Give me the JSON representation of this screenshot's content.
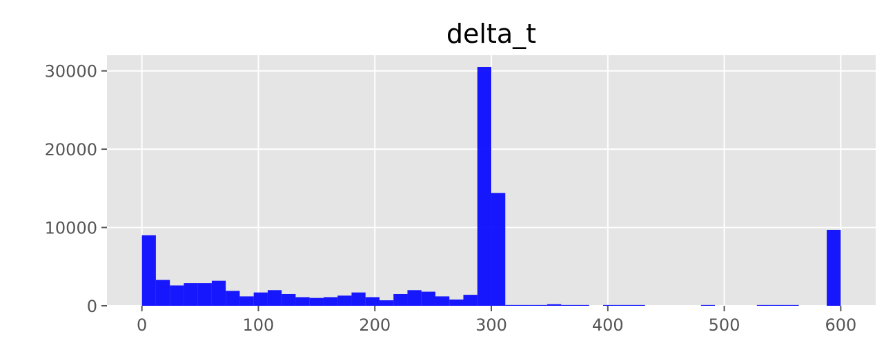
{
  "chart_data": {
    "type": "bar",
    "title": "delta_t",
    "xlabel": "",
    "ylabel": "",
    "xlim": [
      -30,
      630
    ],
    "ylim": [
      0,
      32000
    ],
    "grid": true,
    "background_color": "#e5e5e5",
    "grid_color": "#ffffff",
    "bar_color": "#0000ff",
    "x_ticks": [
      0,
      100,
      200,
      300,
      400,
      500,
      600
    ],
    "y_ticks": [
      0,
      10000,
      20000,
      30000
    ],
    "bin_width": 12,
    "bins": [
      {
        "start": 0,
        "value": 9000
      },
      {
        "start": 12,
        "value": 3300
      },
      {
        "start": 24,
        "value": 2600
      },
      {
        "start": 36,
        "value": 2900
      },
      {
        "start": 48,
        "value": 2900
      },
      {
        "start": 60,
        "value": 3200
      },
      {
        "start": 72,
        "value": 1900
      },
      {
        "start": 84,
        "value": 1200
      },
      {
        "start": 96,
        "value": 1700
      },
      {
        "start": 108,
        "value": 2000
      },
      {
        "start": 120,
        "value": 1500
      },
      {
        "start": 132,
        "value": 1100
      },
      {
        "start": 144,
        "value": 1000
      },
      {
        "start": 156,
        "value": 1100
      },
      {
        "start": 168,
        "value": 1300
      },
      {
        "start": 180,
        "value": 1700
      },
      {
        "start": 192,
        "value": 1100
      },
      {
        "start": 204,
        "value": 700
      },
      {
        "start": 216,
        "value": 1500
      },
      {
        "start": 228,
        "value": 2000
      },
      {
        "start": 240,
        "value": 1800
      },
      {
        "start": 252,
        "value": 1200
      },
      {
        "start": 264,
        "value": 800
      },
      {
        "start": 276,
        "value": 1400
      },
      {
        "start": 288,
        "value": 30500
      },
      {
        "start": 300,
        "value": 14400
      },
      {
        "start": 312,
        "value": 100
      },
      {
        "start": 324,
        "value": 100
      },
      {
        "start": 336,
        "value": 100
      },
      {
        "start": 348,
        "value": 200
      },
      {
        "start": 360,
        "value": 100
      },
      {
        "start": 372,
        "value": 100
      },
      {
        "start": 396,
        "value": 100
      },
      {
        "start": 408,
        "value": 100
      },
      {
        "start": 420,
        "value": 100
      },
      {
        "start": 480,
        "value": 100
      },
      {
        "start": 528,
        "value": 100
      },
      {
        "start": 540,
        "value": 100
      },
      {
        "start": 552,
        "value": 100
      },
      {
        "start": 588,
        "value": 9700
      }
    ]
  }
}
